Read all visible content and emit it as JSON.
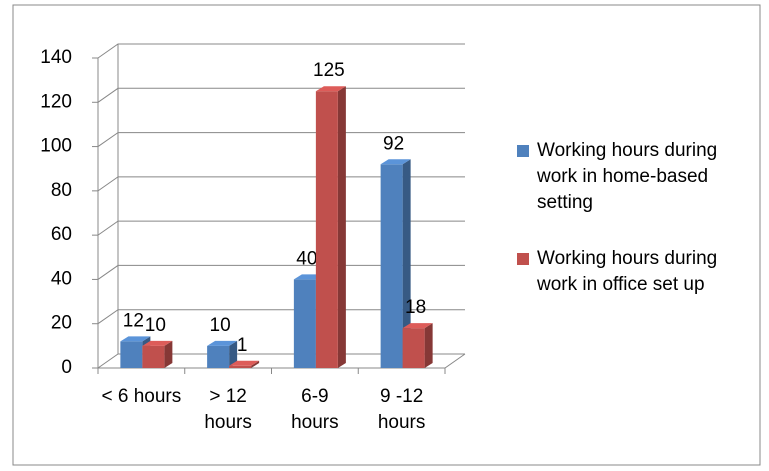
{
  "chart_data": {
    "type": "bar3d",
    "categories": [
      "< 6 hours",
      "> 12 hours",
      "6-9 hours",
      "9 -12 hours"
    ],
    "series": [
      {
        "name": "Working hours during work in home-based setting",
        "color": "#4f81bd",
        "values": [
          12,
          10,
          40,
          92
        ]
      },
      {
        "name": "Working hours during work in office set up",
        "color": "#c0504d",
        "values": [
          10,
          1,
          125,
          18
        ]
      }
    ],
    "ylim": [
      0,
      140
    ],
    "yticks": [
      0,
      20,
      40,
      60,
      80,
      100,
      120,
      140
    ],
    "grid": true,
    "legend": "right"
  }
}
